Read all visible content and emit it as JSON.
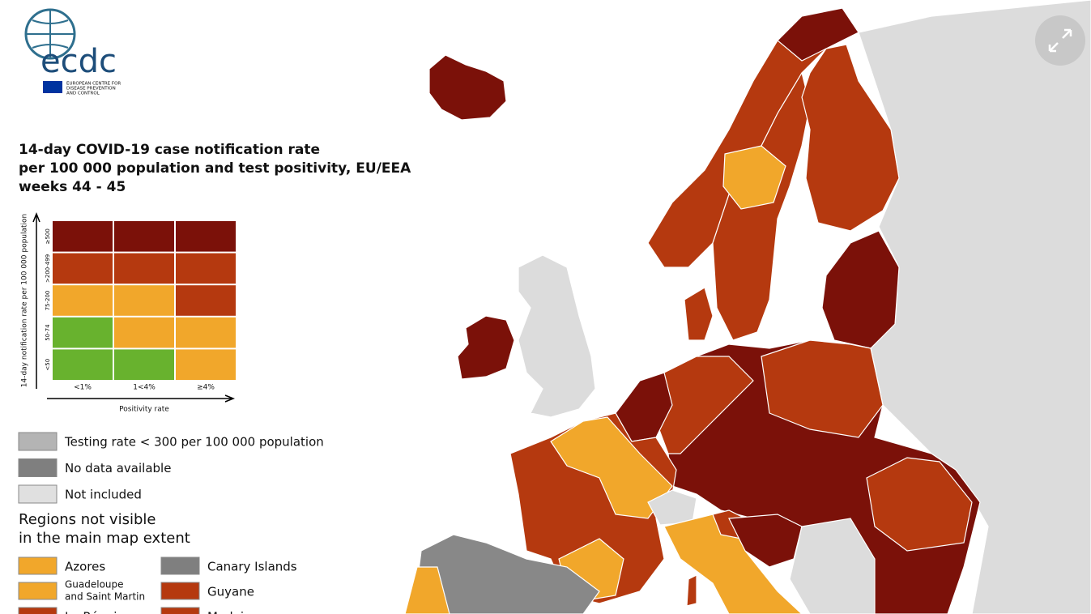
{
  "logo": {
    "mark": "ecdc",
    "organization": [
      "EUROPEAN CENTRE FOR",
      "DISEASE PREVENTION",
      "AND CONTROL"
    ]
  },
  "title": [
    "14-day COVID-19 case notification rate",
    "per 100 000 population and test positivity, EU/EEA",
    "weeks 44 - 45"
  ],
  "matrix": {
    "y_axis_label": "14-day notification rate per 100 000 population",
    "row_labels": [
      "≥500",
      ">200-499",
      "75-200",
      "50-74",
      "<50"
    ],
    "column_labels": [
      "<1%",
      "1<4%",
      "≥4%"
    ],
    "x_axis_label": "Positivity rate",
    "cells": [
      [
        "#7b1109",
        "#7b1109",
        "#7b1109"
      ],
      [
        "#b5390f",
        "#b5390f",
        "#b5390f"
      ],
      [
        "#f1a72b",
        "#f1a72b",
        "#b5390f"
      ],
      [
        "#68b22e",
        "#f1a72b",
        "#f1a72b"
      ],
      [
        "#68b22e",
        "#68b22e",
        "#f1a72b"
      ]
    ]
  },
  "legend": [
    {
      "label": "Testing rate < 300 per 100 000 population",
      "color": "#b4b4b4"
    },
    {
      "label": "No data available",
      "color": "#7f7f7f"
    },
    {
      "label": "Not included",
      "color": "#e0e0e0"
    }
  ],
  "regions_heading": [
    "Regions not visible",
    "in the main map extent"
  ],
  "regions": [
    {
      "label": "Azores",
      "color": "#f1a72b"
    },
    {
      "label": "Canary Islands",
      "color": "#7f7f7f"
    },
    {
      "label": [
        "Guadeloupe",
        "and Saint Martin"
      ],
      "color": "#f1a72b"
    },
    {
      "label": "Guyane",
      "color": "#b5390f"
    },
    {
      "label": "La Réunion",
      "color": "#b5390f"
    },
    {
      "label": "Madeira",
      "color": "#b5390f"
    }
  ]
}
